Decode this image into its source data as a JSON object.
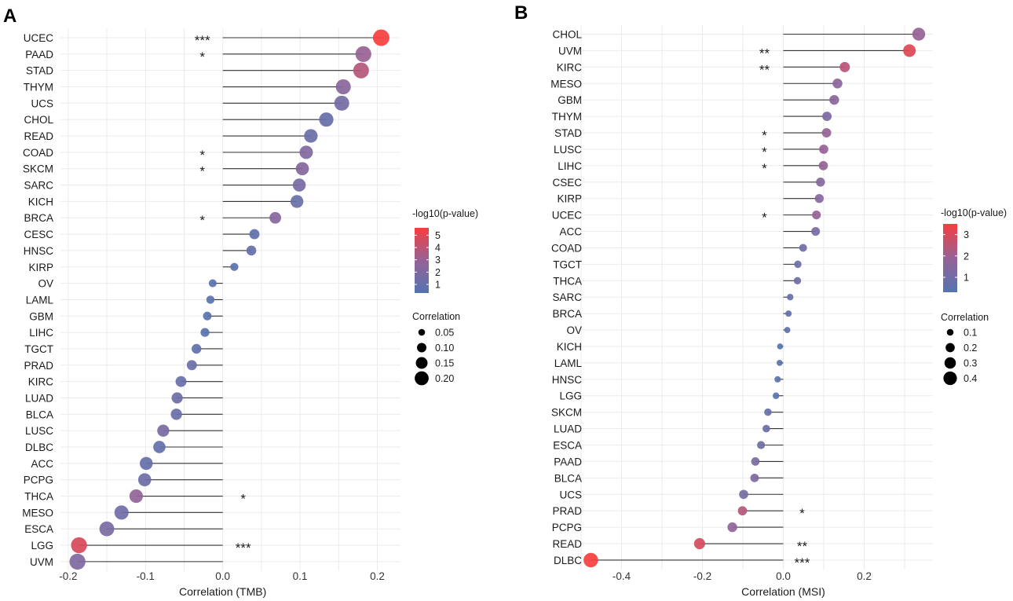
{
  "chart_data": [
    {
      "type": "lollipop",
      "panel_label": "A",
      "xlabel": "Correlation (TMB)",
      "ylabel": "",
      "xlim": [
        -0.21,
        0.23
      ],
      "xticks": [
        -0.2,
        -0.1,
        0.0,
        0.1,
        0.2
      ],
      "xtick_labels": [
        "-0.2",
        "-0.1",
        "0.0",
        "0.1",
        "0.2"
      ],
      "legend_color": {
        "title": "-log10(p-value)",
        "min": 0.3,
        "max": 5.6,
        "ticks": [
          1,
          2,
          3,
          4,
          5
        ],
        "tick_labels": [
          "1",
          "2",
          "3",
          "4",
          "5"
        ]
      },
      "legend_size": {
        "title": "Correlation",
        "ticks": [
          0.05,
          0.1,
          0.15,
          0.2
        ],
        "tick_labels": [
          "0.05",
          "0.10",
          "0.15",
          "0.20"
        ]
      },
      "categories": [
        "UCEC",
        "PAAD",
        "STAD",
        "THYM",
        "UCS",
        "CHOL",
        "READ",
        "COAD",
        "SKCM",
        "SARC",
        "KICH",
        "BRCA",
        "CESC",
        "HNSC",
        "KIRP",
        "OV",
        "LAML",
        "GBM",
        "LIHC",
        "TGCT",
        "PRAD",
        "KIRC",
        "LUAD",
        "BLCA",
        "LUSC",
        "DLBC",
        "ACC",
        "PCPG",
        "THCA",
        "MESO",
        "ESCA",
        "LGG",
        "UVM"
      ],
      "correlation": [
        0.205,
        0.182,
        0.179,
        0.156,
        0.154,
        0.134,
        0.114,
        0.108,
        0.103,
        0.099,
        0.096,
        0.068,
        0.041,
        0.037,
        0.015,
        -0.013,
        -0.016,
        -0.02,
        -0.023,
        -0.034,
        -0.04,
        -0.054,
        -0.059,
        -0.06,
        -0.077,
        -0.082,
        -0.099,
        -0.101,
        -0.112,
        -0.131,
        -0.15,
        -0.186,
        -0.188
      ],
      "neg_log10_p": [
        5.6,
        3.0,
        3.8,
        2.4,
        1.6,
        1.0,
        1.2,
        2.1,
        2.3,
        1.7,
        1.1,
        2.3,
        0.8,
        1.0,
        0.6,
        0.5,
        0.6,
        0.5,
        0.6,
        0.8,
        1.2,
        1.1,
        1.3,
        1.2,
        1.7,
        0.9,
        1.0,
        1.3,
        2.8,
        1.4,
        1.8,
        4.8,
        2.0
      ],
      "significance": [
        "***",
        "*",
        "",
        "",
        "",
        "",
        "",
        "*",
        "*",
        "",
        "",
        "*",
        "",
        "",
        "",
        "",
        "",
        "",
        "",
        "",
        "",
        "",
        "",
        "",
        "",
        "",
        "",
        "",
        "*",
        "",
        "",
        "***",
        ""
      ]
    },
    {
      "type": "lollipop",
      "panel_label": "B",
      "xlabel": "Correlation (MSI)",
      "ylabel": "",
      "xlim": [
        -0.5,
        0.37
      ],
      "xticks": [
        -0.4,
        -0.2,
        0.0,
        0.2
      ],
      "xtick_labels": [
        "-0.4",
        "-0.2",
        "0.0",
        "0.2"
      ],
      "legend_color": {
        "title": "-log10(p-value)",
        "min": 0.3,
        "max": 3.5,
        "ticks": [
          1,
          2,
          3
        ],
        "tick_labels": [
          "1",
          "2",
          "3"
        ]
      },
      "legend_size": {
        "title": "Correlation",
        "ticks": [
          0.1,
          0.2,
          0.3,
          0.4
        ],
        "tick_labels": [
          "0.1",
          "0.2",
          "0.3",
          "0.4"
        ]
      },
      "categories": [
        "CHOL",
        "UVM",
        "KIRC",
        "MESO",
        "GBM",
        "THYM",
        "STAD",
        "LUSC",
        "LIHC",
        "CSEC",
        "KIRP",
        "UCEC",
        "ACC",
        "COAD",
        "TGCT",
        "THCA",
        "SARC",
        "BRCA",
        "OV",
        "KICH",
        "LAML",
        "HNSC",
        "LGG",
        "SKCM",
        "LUAD",
        "ESCA",
        "PAAD",
        "BLCA",
        "UCS",
        "PRAD",
        "PCPG",
        "READ",
        "DLBC"
      ],
      "correlation": [
        0.335,
        0.312,
        0.152,
        0.134,
        0.126,
        0.108,
        0.107,
        0.1,
        0.099,
        0.092,
        0.089,
        0.082,
        0.08,
        0.049,
        0.036,
        0.035,
        0.017,
        0.013,
        0.01,
        -0.008,
        -0.009,
        -0.014,
        -0.018,
        -0.038,
        -0.042,
        -0.055,
        -0.069,
        -0.071,
        -0.098,
        -0.101,
        -0.126,
        -0.207,
        -0.476
      ],
      "neg_log10_p": [
        1.9,
        3.1,
        2.5,
        1.6,
        1.6,
        1.3,
        1.9,
        1.9,
        1.9,
        1.5,
        1.5,
        1.9,
        1.2,
        1.0,
        0.9,
        0.9,
        0.7,
        0.6,
        0.5,
        0.4,
        0.4,
        0.4,
        0.4,
        0.7,
        0.8,
        0.9,
        1.2,
        1.3,
        1.1,
        2.4,
        1.7,
        2.9,
        3.5
      ],
      "significance": [
        "",
        "**",
        "**",
        "",
        "",
        "",
        "*",
        "*",
        "*",
        "",
        "",
        "*",
        "",
        "",
        "",
        "",
        "",
        "",
        "",
        "",
        "",
        "",
        "",
        "",
        "",
        "",
        "",
        "",
        "",
        "*",
        "",
        "**",
        "***"
      ]
    }
  ]
}
